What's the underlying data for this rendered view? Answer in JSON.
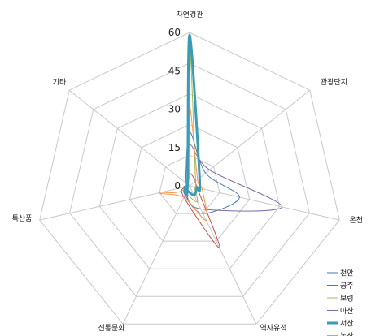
{
  "chart_data": {
    "type": "radar",
    "categories": [
      "자연경관",
      "관광단지",
      "온천",
      "역사유적",
      "전통문화",
      "특산품",
      "기타"
    ],
    "rlim": [
      0,
      60
    ],
    "ticks": [
      0,
      15,
      30,
      45,
      60
    ],
    "grid": true,
    "legend_position": "bottom-right",
    "series": [
      {
        "name": "천안",
        "color": "#4a7ab5",
        "width": 1,
        "values": [
          21,
          8,
          20,
          12,
          4,
          2,
          2
        ]
      },
      {
        "name": "공주",
        "color": "#c0504d",
        "width": 1,
        "values": [
          5,
          3,
          3,
          27,
          5,
          2,
          1
        ]
      },
      {
        "name": "보령",
        "color": "#9bbb59",
        "width": 1,
        "values": [
          55,
          3,
          2,
          7,
          3,
          1,
          1
        ]
      },
      {
        "name": "아산",
        "color": "#7f6aa8",
        "width": 1,
        "values": [
          16,
          10,
          37,
          10,
          3,
          2,
          2
        ]
      },
      {
        "name": "서산",
        "color": "#3a9bb5",
        "width": 3,
        "values": [
          59,
          5,
          3,
          4,
          2,
          2,
          1
        ]
      },
      {
        "name": "논산",
        "color": "#f79646",
        "width": 1,
        "values": [
          31,
          4,
          5,
          15,
          5,
          12,
          1
        ]
      }
    ]
  }
}
